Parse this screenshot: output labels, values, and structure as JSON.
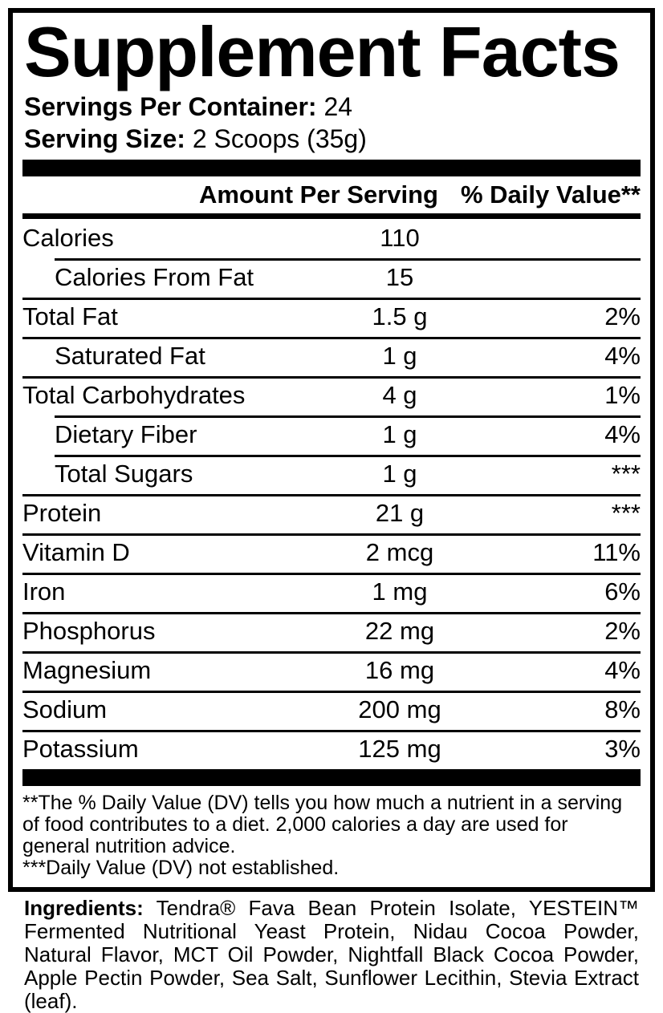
{
  "panel": {
    "title": "Supplement Facts",
    "servings_per_container": {
      "label": "Servings Per Container:",
      "value": "24"
    },
    "serving_size": {
      "label": "Serving Size:",
      "value": "2 Scoops (35g)"
    }
  },
  "table": {
    "headers": {
      "amount": "Amount Per Serving",
      "daily_value": "% Daily Value**"
    },
    "rows": [
      {
        "label": "Calories",
        "amount": "110",
        "dv": "",
        "indent": false,
        "separator_above": "none"
      },
      {
        "label": "Calories From Fat",
        "amount": "15",
        "dv": "",
        "indent": true,
        "separator_above": "indent"
      },
      {
        "label": "Total Fat",
        "amount": "1.5 g",
        "dv": "2%",
        "indent": false,
        "separator_above": "full"
      },
      {
        "label": "Saturated Fat",
        "amount": "1 g",
        "dv": "4%",
        "indent": true,
        "separator_above": "full"
      },
      {
        "label": "Total Carbohydrates",
        "amount": "4 g",
        "dv": "1%",
        "indent": false,
        "separator_above": "full"
      },
      {
        "label": "Dietary Fiber",
        "amount": "1 g",
        "dv": "4%",
        "indent": true,
        "separator_above": "indent"
      },
      {
        "label": "Total Sugars",
        "amount": "1 g",
        "dv": "***",
        "indent": true,
        "separator_above": "indent"
      },
      {
        "label": "Protein",
        "amount": "21 g",
        "dv": "***",
        "indent": false,
        "separator_above": "full"
      },
      {
        "label": "Vitamin D",
        "amount": "2 mcg",
        "dv": "11%",
        "indent": false,
        "separator_above": "full"
      },
      {
        "label": "Iron",
        "amount": "1 mg",
        "dv": "6%",
        "indent": false,
        "separator_above": "full"
      },
      {
        "label": "Phosphorus",
        "amount": "22 mg",
        "dv": "2%",
        "indent": false,
        "separator_above": "full"
      },
      {
        "label": "Magnesium",
        "amount": "16 mg",
        "dv": "4%",
        "indent": false,
        "separator_above": "full"
      },
      {
        "label": "Sodium",
        "amount": "200 mg",
        "dv": "8%",
        "indent": false,
        "separator_above": "full"
      },
      {
        "label": "Potassium",
        "amount": "125 mg",
        "dv": "3%",
        "indent": false,
        "separator_above": "full"
      }
    ]
  },
  "footnotes": [
    "**The % Daily Value (DV) tells you how much a nutrient in a serving of food contributes to a diet. 2,000 calories a day are used for general nutrition advice.",
    "***Daily Value (DV) not established."
  ],
  "ingredients": {
    "label": "Ingredients:",
    "text": "Tendra® Fava Bean Protein Isolate, YESTEIN™ Fermented Nutritional Yeast Protein, Nidau Cocoa Powder, Natural Flavor, MCT Oil Powder, Nightfall Black Cocoa Powder, Apple Pectin Powder, Sea Salt, Sunflower Lecithin, Stevia Extract (leaf)."
  },
  "colors": {
    "text": "#000000",
    "background": "#ffffff"
  }
}
